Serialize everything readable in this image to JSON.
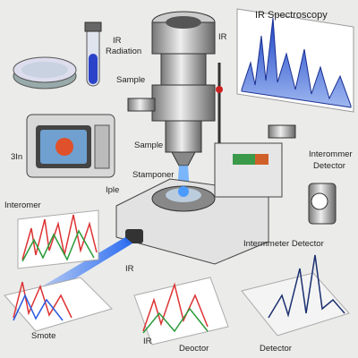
{
  "title": "IR Spectroscopy",
  "labels": [
    "IR",
    "Radiation",
    "IR",
    "Sample",
    "Sample",
    "Stamponer",
    "Interomer",
    "Interommer",
    "Detector",
    "Intermmeter Detector",
    "IR",
    "Smote",
    "IR",
    "Deoctor",
    "Detector",
    "3In",
    "Iple"
  ]
}
